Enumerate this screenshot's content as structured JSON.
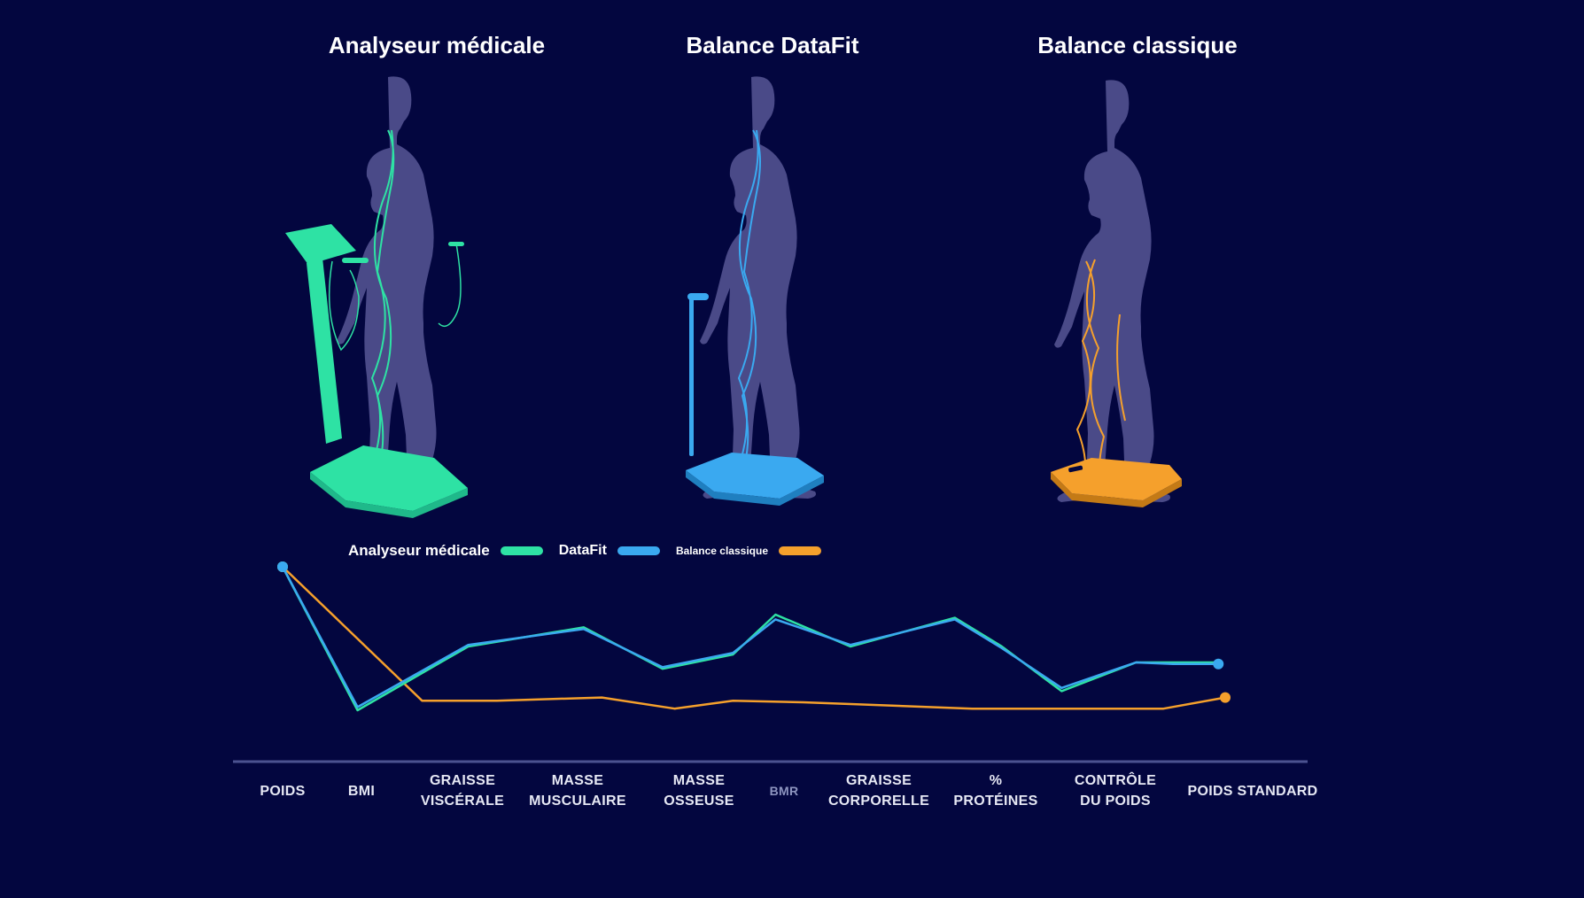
{
  "panels": {
    "medical": {
      "title": "Analyseur médicale"
    },
    "datafit": {
      "title": "Balance DataFit"
    },
    "classic": {
      "title": "Balance classique"
    }
  },
  "colors": {
    "background": "#03063f",
    "medical": "#2ee2a4",
    "datafit": "#3aa9f0",
    "classic": "#f5a02c",
    "silhouette": "#4a4a88",
    "axis": "#4b5290"
  },
  "chart_data": {
    "type": "line",
    "categories": [
      "POIDS",
      "BMI",
      "GRAISSE VISCÉRALE",
      "MASSE MUSCULAIRE",
      "MASSE OSSEUSE",
      "BMR",
      "GRAISSE CORPORELLE",
      "% PROTÉINES",
      "CONTRÔLE DU POIDS",
      "POIDS STANDARD"
    ],
    "category_lines": [
      [
        "POIDS"
      ],
      [
        "BMI"
      ],
      [
        "GRAISSE",
        "VISCÉRALE"
      ],
      [
        "MASSE",
        "MUSCULAIRE"
      ],
      [
        "MASSE",
        "OSSEUSE"
      ],
      [
        "BMR"
      ],
      [
        "GRAISSE",
        "CORPORELLE"
      ],
      [
        "%",
        "PROTÉINES"
      ],
      [
        "CONTRÔLE",
        "DU POIDS"
      ],
      [
        "POIDS STANDARD"
      ]
    ],
    "legend": [
      {
        "label": "Analyseur médicale",
        "color": "#2ee2a4"
      },
      {
        "label": "DataFit",
        "color": "#3aa9f0"
      },
      {
        "label": "Balance classique",
        "color": "#f5a02c"
      }
    ],
    "series": [
      {
        "name": "Analyseur médicale",
        "color": "#2ee2a4",
        "x": [
          0,
          0.95,
          2.05,
          3.05,
          3.7,
          4.4,
          4.9,
          5.7,
          6.65,
          7.05,
          7.55,
          8.15,
          8.42,
          8.75
        ],
        "y": [
          100,
          10,
          50,
          62,
          36,
          45,
          70,
          50,
          68,
          50,
          22,
          40,
          40,
          40
        ]
      },
      {
        "name": "DataFit",
        "color": "#3aa9f0",
        "x": [
          0,
          0.95,
          2.05,
          3.05,
          3.7,
          4.4,
          4.9,
          5.7,
          6.65,
          7.05,
          7.55,
          8.15,
          8.42,
          8.75
        ],
        "y": [
          100,
          12,
          51,
          61,
          37,
          46,
          67,
          51,
          67,
          49,
          24,
          40,
          39,
          39
        ]
      },
      {
        "name": "Balance classique",
        "color": "#f5a02c",
        "x": [
          0,
          1.6,
          2.3,
          3.2,
          3.8,
          4.4,
          5.2,
          6.8,
          7.55,
          8.35,
          8.8
        ],
        "y": [
          100,
          16,
          16,
          18,
          11,
          16,
          15,
          11,
          11,
          11,
          18
        ]
      }
    ],
    "ylim": [
      0,
      100
    ],
    "grid": false,
    "legend_position": "top-left"
  }
}
